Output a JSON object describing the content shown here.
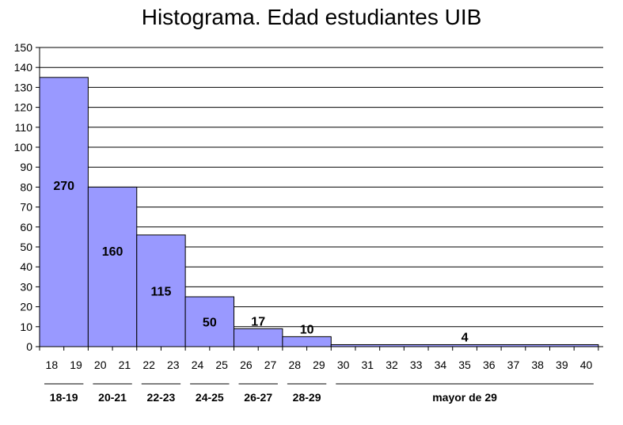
{
  "chart_data": {
    "type": "bar",
    "title": "Histograma. Edad estudiantes UIB",
    "xlabel": "",
    "ylabel": "",
    "ylim": [
      0,
      150
    ],
    "y_ticks": [
      "0",
      "10",
      "20",
      "30",
      "40",
      "50",
      "60",
      "70",
      "80",
      "90",
      "100",
      "110",
      "120",
      "130",
      "140",
      "150"
    ],
    "x_ticks": [
      "18",
      "19",
      "20",
      "21",
      "22",
      "23",
      "24",
      "25",
      "26",
      "27",
      "28",
      "29",
      "30",
      "31",
      "32",
      "33",
      "34",
      "35",
      "36",
      "37",
      "38",
      "39",
      "40"
    ],
    "grid": true,
    "bars": [
      {
        "from": "18",
        "to": "19",
        "height": 135,
        "label": "270"
      },
      {
        "from": "20",
        "to": "21",
        "height": 80,
        "label": "160"
      },
      {
        "from": "22",
        "to": "23",
        "height": 56,
        "label": "115"
      },
      {
        "from": "24",
        "to": "25",
        "height": 25,
        "label": "50"
      },
      {
        "from": "26",
        "to": "27",
        "height": 9,
        "label": "17"
      },
      {
        "from": "28",
        "to": "29",
        "height": 5,
        "label": "10"
      },
      {
        "from": "30",
        "to": "40",
        "height": 1,
        "label": "4"
      }
    ],
    "groups": [
      "18-19",
      "20-21",
      "22-23",
      "24-25",
      "26-27",
      "28-29",
      "mayor de 29"
    ],
    "colors": {
      "bar": "#9999ff",
      "bar_stroke": "#000000",
      "grid": "#000000"
    }
  }
}
